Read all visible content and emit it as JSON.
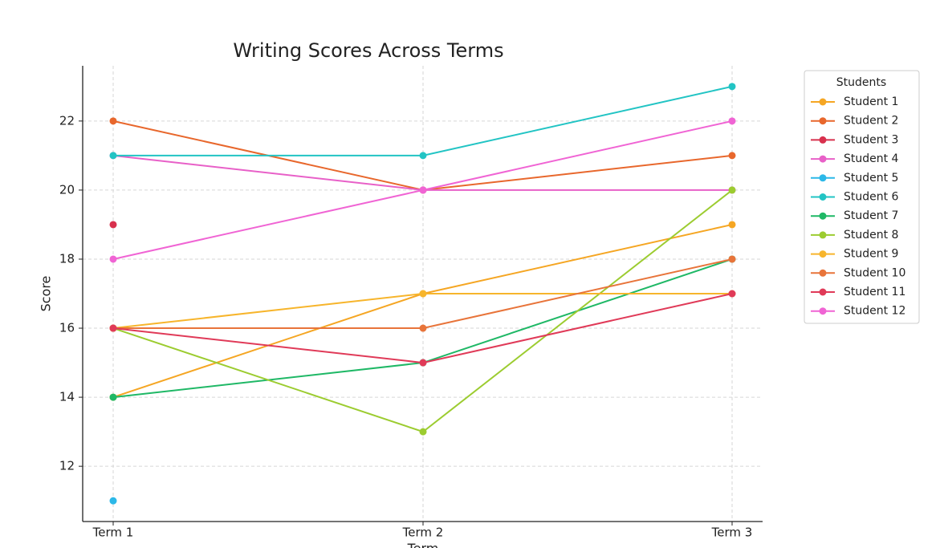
{
  "chart_data": {
    "type": "line",
    "title": "Writing Scores Across Terms",
    "xlabel": "Term",
    "ylabel": "Score",
    "categories": [
      "Term 1",
      "Term 2",
      "Term 3"
    ],
    "ylim": [
      10.4,
      23.6
    ],
    "yticks": [
      12,
      14,
      16,
      18,
      20,
      22
    ],
    "grid": true,
    "legend_title": "Students",
    "legend": "outside-upper-right",
    "series": [
      {
        "name": "Student 1",
        "color": "#f5a623",
        "values": [
          14,
          17,
          19
        ]
      },
      {
        "name": "Student 2",
        "color": "#e8672c",
        "values": [
          22,
          20,
          21
        ]
      },
      {
        "name": "Student 3",
        "color": "#d8304d",
        "values": [
          19,
          null,
          null
        ]
      },
      {
        "name": "Student 4",
        "color": "#e860c8",
        "values": [
          21,
          20,
          20
        ]
      },
      {
        "name": "Student 5",
        "color": "#2cb8e8",
        "values": [
          11,
          null,
          null
        ]
      },
      {
        "name": "Student 6",
        "color": "#22c4c4",
        "values": [
          21,
          21,
          23
        ]
      },
      {
        "name": "Student 7",
        "color": "#1fb866",
        "values": [
          14,
          15,
          18
        ]
      },
      {
        "name": "Student 8",
        "color": "#9ccc30",
        "values": [
          16,
          13,
          20
        ]
      },
      {
        "name": "Student 9",
        "color": "#f7b52c",
        "values": [
          16,
          17,
          17
        ]
      },
      {
        "name": "Student 10",
        "color": "#e8743a",
        "values": [
          16,
          16,
          18
        ]
      },
      {
        "name": "Student 11",
        "color": "#e03a58",
        "values": [
          16,
          15,
          17
        ]
      },
      {
        "name": "Student 12",
        "color": "#f064d4",
        "values": [
          18,
          20,
          22
        ]
      }
    ]
  }
}
